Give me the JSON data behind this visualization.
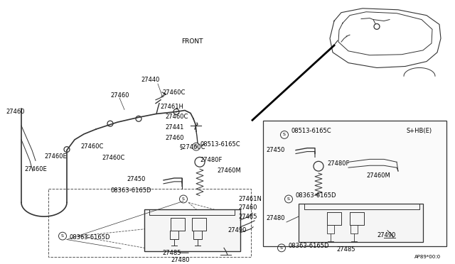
{
  "bg_color": "#ffffff",
  "line_color": "#333333",
  "diagram_code": "AP89*00:0",
  "front_label": "FRONT",
  "shb_label": "S+HB(E)",
  "font_size": 6.0
}
